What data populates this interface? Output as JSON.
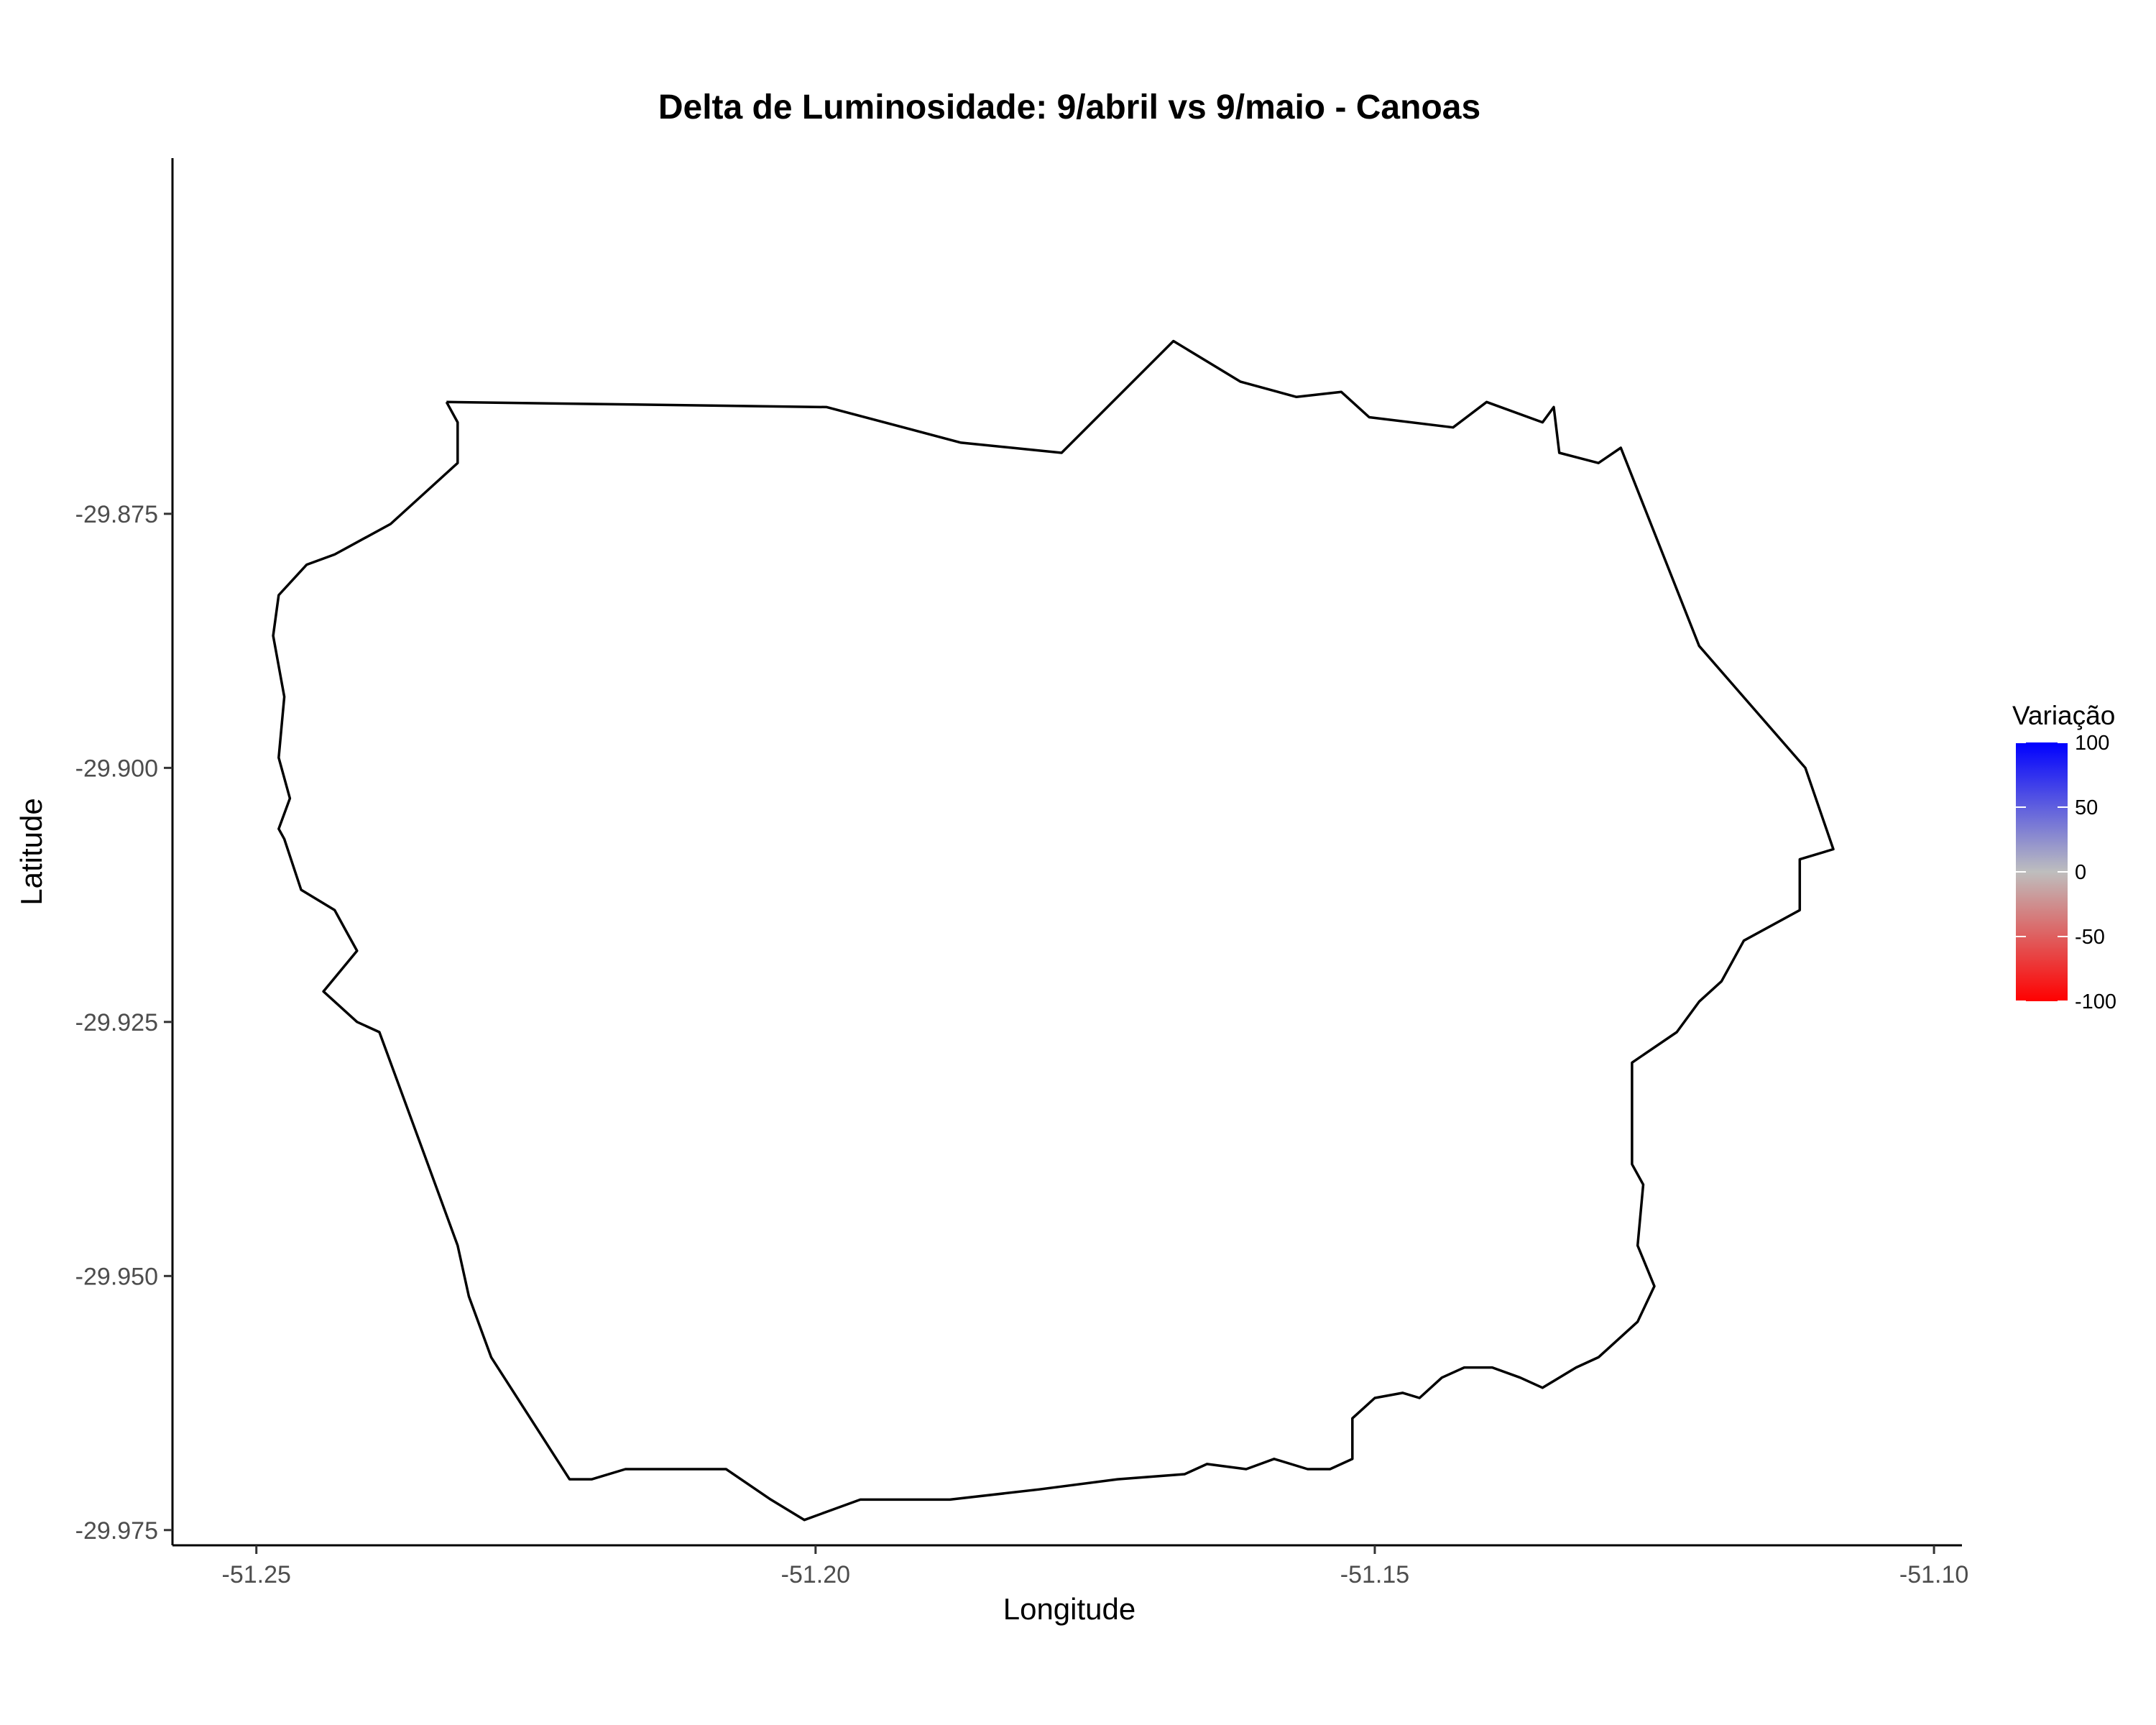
{
  "chart_data": {
    "type": "heatmap",
    "title": "Delta de Luminosidade: 9/abril vs 9/maio - Canoas",
    "xlabel": "Longitude",
    "ylabel": "Latitude",
    "xlim": [
      -51.2575,
      -51.0975
    ],
    "ylim": [
      -29.9765,
      -29.84
    ],
    "x_ticks": [
      -51.25,
      -51.2,
      -51.15,
      -51.1
    ],
    "x_tick_labels": [
      "-51.25",
      "-51.20",
      "-51.15",
      "-51.10"
    ],
    "y_ticks": [
      -29.875,
      -29.9,
      -29.925,
      -29.95,
      -29.975
    ],
    "y_tick_labels": [
      "-29.875",
      "-29.900",
      "-29.925",
      "-29.950",
      "-29.975"
    ],
    "grid": false,
    "legend": {
      "title": "Variação",
      "position": "right",
      "range": [
        -100,
        100
      ],
      "breaks": [
        100,
        50,
        0,
        -50,
        -100
      ],
      "break_labels": [
        "100",
        "50",
        "0",
        "-50",
        "-100"
      ],
      "colors": {
        "low": "#ff0000",
        "mid": "#bebebe",
        "high": "#0000ff"
      }
    },
    "grid_meta": {
      "lon0": -51.25,
      "lat0": -29.865,
      "dlon": 0.00417,
      "dlat": 0.00417,
      "legend_codes": {
        "R": -100,
        "r": -90,
        "M": -75,
        "m": -55,
        "l": -35,
        "g": 0
      }
    },
    "cells": [
      "",
      "",
      "",
      "",
      "",
      "",
      "",
      "",
      "",
      "",
      "",
      "",
      "",
      "",
      "",
      "",
      "",
      "",
      "",
      "",
      "",
      "",
      "",
      "",
      "",
      ""
    ],
    "boundary": [
      [
        -51.233,
        -29.864
      ],
      [
        -51.199,
        -29.8645
      ],
      [
        -51.187,
        -29.868
      ],
      [
        -51.178,
        -29.869
      ],
      [
        -51.168,
        -29.858
      ],
      [
        -51.162,
        -29.862
      ],
      [
        -51.157,
        -29.8635
      ],
      [
        -51.153,
        -29.863
      ],
      [
        -51.1505,
        -29.8655
      ],
      [
        -51.143,
        -29.8665
      ],
      [
        -51.14,
        -29.864
      ],
      [
        -51.135,
        -29.866
      ],
      [
        -51.134,
        -29.8645
      ],
      [
        -51.1335,
        -29.869
      ],
      [
        -51.13,
        -29.87
      ],
      [
        -51.128,
        -29.8685
      ],
      [
        -51.121,
        -29.888
      ],
      [
        -51.1115,
        -29.9
      ],
      [
        -51.109,
        -29.908
      ],
      [
        -51.112,
        -29.909
      ],
      [
        -51.112,
        -29.914
      ],
      [
        -51.117,
        -29.917
      ],
      [
        -51.119,
        -29.921
      ],
      [
        -51.121,
        -29.923
      ],
      [
        -51.123,
        -29.926
      ],
      [
        -51.127,
        -29.929
      ],
      [
        -51.127,
        -29.939
      ],
      [
        -51.126,
        -29.941
      ],
      [
        -51.1265,
        -29.947
      ],
      [
        -51.125,
        -29.951
      ],
      [
        -51.1265,
        -29.9545
      ],
      [
        -51.129,
        -29.957
      ],
      [
        -51.13,
        -29.958
      ],
      [
        -51.132,
        -29.959
      ],
      [
        -51.135,
        -29.961
      ],
      [
        -51.137,
        -29.96
      ],
      [
        -51.1395,
        -29.959
      ],
      [
        -51.142,
        -29.959
      ],
      [
        -51.144,
        -29.96
      ],
      [
        -51.146,
        -29.962
      ],
      [
        -51.1475,
        -29.9615
      ],
      [
        -51.15,
        -29.962
      ],
      [
        -51.152,
        -29.964
      ],
      [
        -51.152,
        -29.968
      ],
      [
        -51.154,
        -29.969
      ],
      [
        -51.156,
        -29.969
      ],
      [
        -51.159,
        -29.968
      ],
      [
        -51.1615,
        -29.969
      ],
      [
        -51.165,
        -29.9685
      ],
      [
        -51.167,
        -29.9695
      ],
      [
        -51.173,
        -29.97
      ],
      [
        -51.18,
        -29.971
      ],
      [
        -51.188,
        -29.972
      ],
      [
        -51.196,
        -29.972
      ],
      [
        -51.1985,
        -29.973
      ],
      [
        -51.201,
        -29.974
      ],
      [
        -51.204,
        -29.972
      ],
      [
        -51.208,
        -29.969
      ],
      [
        -51.217,
        -29.969
      ],
      [
        -51.22,
        -29.97
      ],
      [
        -51.222,
        -29.97
      ],
      [
        -51.229,
        -29.958
      ],
      [
        -51.231,
        -29.952
      ],
      [
        -51.232,
        -29.947
      ],
      [
        -51.235,
        -29.938
      ],
      [
        -51.239,
        -29.926
      ],
      [
        -51.241,
        -29.925
      ],
      [
        -51.244,
        -29.922
      ],
      [
        -51.241,
        -29.918
      ],
      [
        -51.242,
        -29.916
      ],
      [
        -51.243,
        -29.914
      ],
      [
        -51.246,
        -29.912
      ],
      [
        -51.2475,
        -29.907
      ],
      [
        -51.248,
        -29.906
      ],
      [
        -51.247,
        -29.903
      ],
      [
        -51.248,
        -29.899
      ],
      [
        -51.2475,
        -29.893
      ],
      [
        -51.2485,
        -29.887
      ],
      [
        -51.248,
        -29.883
      ],
      [
        -51.2455,
        -29.88
      ],
      [
        -51.243,
        -29.879
      ],
      [
        -51.238,
        -29.876
      ],
      [
        -51.232,
        -29.87
      ],
      [
        -51.232,
        -29.866
      ],
      [
        -51.233,
        -29.864
      ]
    ]
  }
}
